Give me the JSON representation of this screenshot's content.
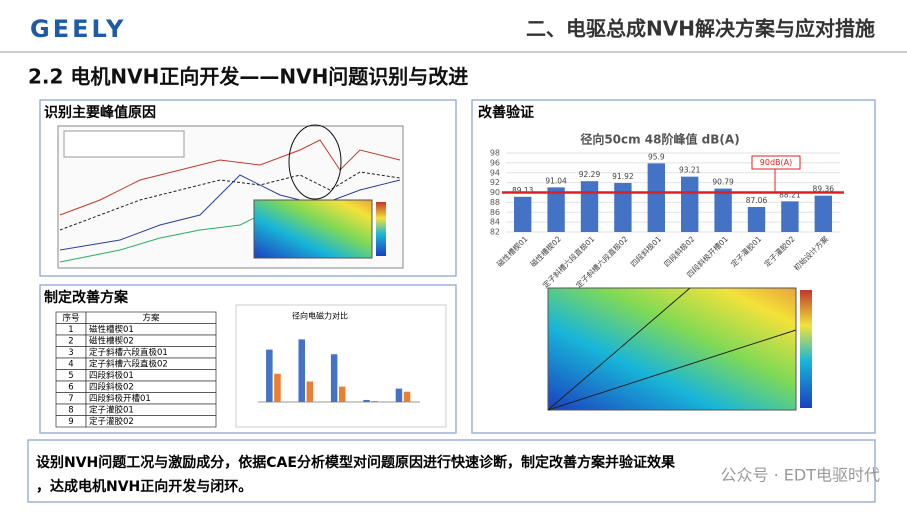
{
  "header": {
    "logo": "GEELY",
    "title": "二、电驱总成NVH解决方案与应对措施"
  },
  "subtitle": "2.2  电机NVH正向开发——NVH问题识别与改进",
  "panels": {
    "identify": {
      "title": "识别主要峰值原因"
    },
    "plan": {
      "title": "制定改善方案",
      "table": {
        "header": [
          "序号",
          "方案"
        ],
        "rows": [
          [
            1,
            "磁性槽楔01"
          ],
          [
            2,
            "磁性槽楔02"
          ],
          [
            3,
            "定子斜槽六段直极01"
          ],
          [
            4,
            "定子斜槽六段直极02"
          ],
          [
            5,
            "四段斜极01"
          ],
          [
            6,
            "四段斜极02"
          ],
          [
            7,
            "四段斜极开槽01"
          ],
          [
            8,
            "定子灌胶01"
          ],
          [
            9,
            "定子灌胶02"
          ]
        ]
      },
      "chart": {
        "type": "bar",
        "title": "径向电磁力对比",
        "ylim": [
          0,
          150
        ],
        "series": [
          {
            "color": "#4472c4",
            "values": [
              102,
              122,
              93,
              4,
              26
            ]
          },
          {
            "color": "#ed7d31",
            "values": [
              55,
              40,
              30,
              2,
              20
            ]
          }
        ]
      }
    },
    "verify": {
      "title": "改善验证",
      "chart": {
        "type": "bar",
        "title": "径向50cm 48阶峰值 dB(A)",
        "categories": [
          "磁性槽楔01",
          "磁性槽楔02",
          "定子斜槽六段直极01",
          "定子斜槽六段直极02",
          "四段斜极01",
          "四段斜极02",
          "四段斜极开槽01",
          "定子灌胶01",
          "定子灌胶02",
          "初始设计方案"
        ],
        "values": [
          89.13,
          91.04,
          92.29,
          91.92,
          95.9,
          93.21,
          90.79,
          87.06,
          88.21,
          89.36
        ],
        "color": "#4472c4",
        "ylim": [
          82,
          98
        ],
        "yticks": [
          82,
          84,
          86,
          88,
          90,
          92,
          94,
          96,
          98
        ],
        "threshold": {
          "value": 90,
          "label": "90dB(A)",
          "color": "#e02020"
        }
      }
    }
  },
  "summary": [
    "设别NVH问题工况与激励成分，依据CAE分析模型对问题原因进行快速诊断，制定改善方案并验证效果",
    "，达成电机NVH正向开发与闭环。"
  ],
  "watermark": "公众号 · EDT电驱时代"
}
